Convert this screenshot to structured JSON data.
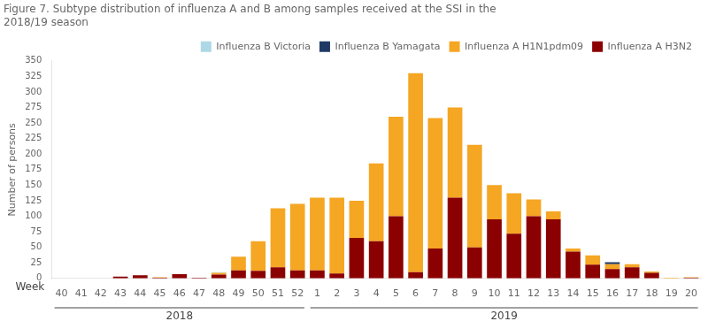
{
  "chart_data": {
    "type": "bar",
    "stacked": true,
    "title": "Figure 7. Subtype distribution of influenza A and B among samples received at the SSI in the\n2018/19 season",
    "ylabel": "Number of persons",
    "xlabel": "Week",
    "categories": [
      "40",
      "41",
      "42",
      "43",
      "44",
      "45",
      "46",
      "47",
      "48",
      "49",
      "50",
      "51",
      "52",
      "1",
      "2",
      "3",
      "4",
      "5",
      "6",
      "7",
      "8",
      "9",
      "10",
      "11",
      "12",
      "13",
      "14",
      "15",
      "16",
      "17",
      "18",
      "19",
      "20"
    ],
    "series": [
      {
        "name": "Influenza A H3N2",
        "color": "#8b0000",
        "values": [
          0,
          0,
          0,
          3,
          5,
          1,
          7,
          1,
          6,
          13,
          12,
          18,
          13,
          13,
          8,
          65,
          60,
          100,
          10,
          48,
          130,
          50,
          95,
          72,
          100,
          95,
          43,
          22,
          15,
          18,
          9,
          0,
          1
        ]
      },
      {
        "name": "Influenza A H1N1pdm09",
        "color": "#f5a623",
        "values": [
          0,
          0,
          0,
          0,
          0,
          1,
          0,
          0,
          3,
          22,
          48,
          95,
          107,
          117,
          122,
          60,
          125,
          160,
          320,
          210,
          145,
          165,
          55,
          65,
          27,
          13,
          5,
          15,
          8,
          5,
          2,
          1,
          1
        ]
      },
      {
        "name": "Influenza B Yamagata",
        "color": "#1f3864",
        "values": [
          0,
          0,
          0,
          0,
          0,
          0,
          0,
          0,
          0,
          0,
          0,
          0,
          0,
          0,
          0,
          0,
          0,
          0,
          0,
          0,
          0,
          0,
          0,
          0,
          0,
          0,
          0,
          0,
          3,
          0,
          0,
          0,
          0
        ]
      },
      {
        "name": "Influenza B Victoria",
        "color": "#add8e6",
        "values": [
          0,
          0,
          0,
          0,
          0,
          0,
          0,
          0,
          1,
          0,
          0,
          0,
          0,
          0,
          0,
          0,
          0,
          0,
          0,
          0,
          0,
          0,
          0,
          0,
          0,
          0,
          0,
          0,
          0,
          0,
          0,
          0,
          0
        ]
      }
    ],
    "ylim": [
      0,
      350
    ],
    "yticks": [
      0,
      25,
      50,
      75,
      100,
      125,
      150,
      175,
      200,
      225,
      250,
      275,
      300,
      325,
      350
    ],
    "grid": false,
    "legend": "upper right",
    "annotations": [
      {
        "text": "2018",
        "from": "40",
        "to": "52"
      },
      {
        "text": "2019",
        "from": "1",
        "to": "20"
      }
    ]
  }
}
